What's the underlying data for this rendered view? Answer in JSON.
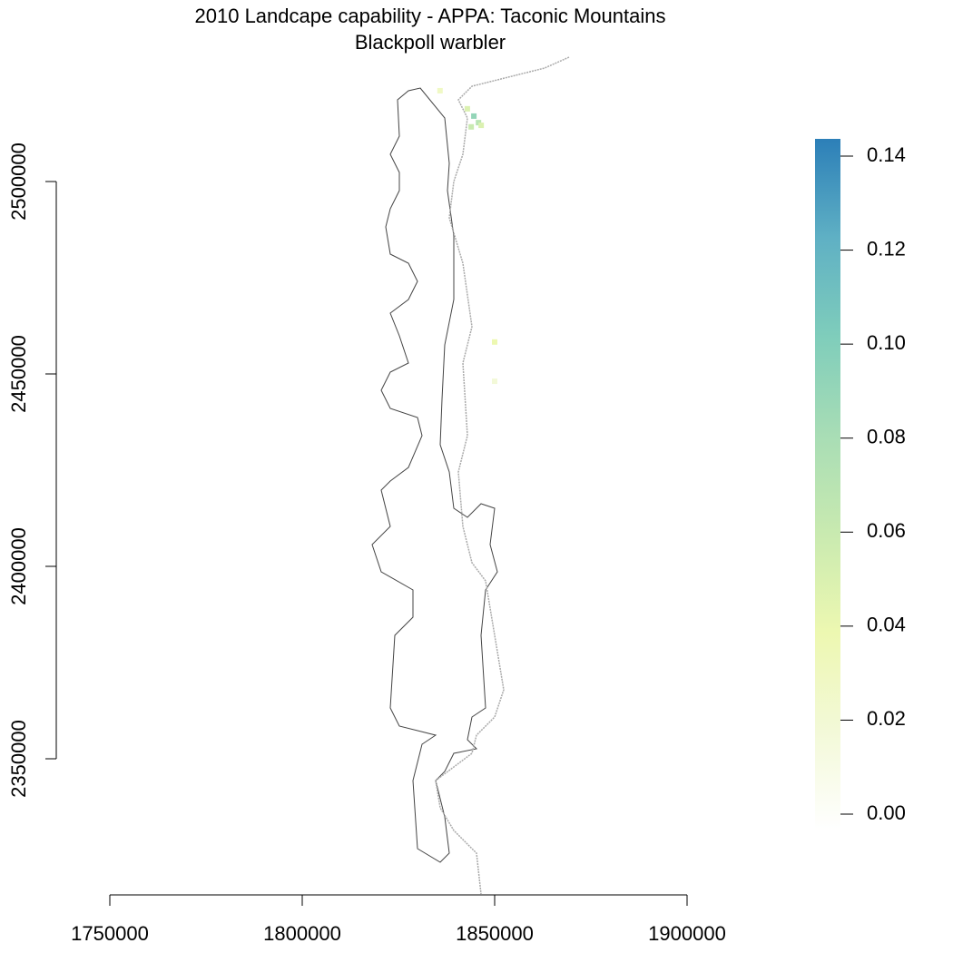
{
  "chart_data": {
    "type": "raster-map",
    "title": "2010 Landcape capability - APPA: Taconic Mountains",
    "subtitle": "Blackpoll warbler",
    "xlim": [
      1750000,
      1900000
    ],
    "xticks": [
      1750000,
      1800000,
      1850000,
      1900000
    ],
    "ylim": [
      2350000,
      2500000
    ],
    "yticks": [
      2350000,
      2400000,
      2450000,
      2500000
    ],
    "cells": [
      {
        "x": 1835800,
        "y": 2523600,
        "value": 0.03
      },
      {
        "x": 1842900,
        "y": 2518900,
        "value": 0.05
      },
      {
        "x": 1844600,
        "y": 2517000,
        "value": 0.09
      },
      {
        "x": 1845800,
        "y": 2515300,
        "value": 0.07
      },
      {
        "x": 1843900,
        "y": 2514200,
        "value": 0.06
      },
      {
        "x": 1846500,
        "y": 2514600,
        "value": 0.05
      },
      {
        "x": 1850000,
        "y": 2458300,
        "value": 0.04
      },
      {
        "x": 1850000,
        "y": 2448100,
        "value": 0.02
      }
    ],
    "colorbar": {
      "lim": [
        0,
        0.14
      ],
      "ticks": [
        {
          "value": 0,
          "label": "0.00"
        },
        0.02,
        0.04,
        0.06,
        0.08,
        {
          "value": 0.1,
          "label": "0.10"
        },
        0.12,
        0.14
      ],
      "colors": [
        "#ffffff",
        "#f3f9d8",
        "#edf8b1",
        "#c9eab0",
        "#a8ddb5",
        "#7fcdbb",
        "#5fb0c4",
        "#2c7fb8"
      ]
    }
  }
}
